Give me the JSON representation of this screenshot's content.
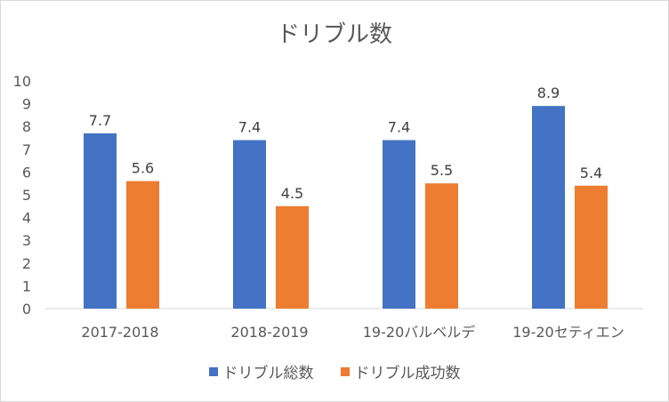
{
  "chart_data": {
    "type": "bar",
    "title": "ドリブル数",
    "categories": [
      "2017-2018",
      "2018-2019",
      "19-20バルベルデ",
      "19-20セティエン"
    ],
    "series": [
      {
        "name": "ドリブル総数",
        "values": [
          7.7,
          7.4,
          7.4,
          8.9
        ],
        "color": "#4472C4"
      },
      {
        "name": "ドリブル成功数",
        "values": [
          5.6,
          4.5,
          5.5,
          5.4
        ],
        "color": "#ED7D31"
      }
    ],
    "ylim": [
      0,
      10
    ],
    "yticks": [
      "0",
      "1",
      "2",
      "3",
      "4",
      "5",
      "6",
      "7",
      "8",
      "9",
      "10"
    ],
    "grid": false,
    "legend_position": "bottom"
  }
}
